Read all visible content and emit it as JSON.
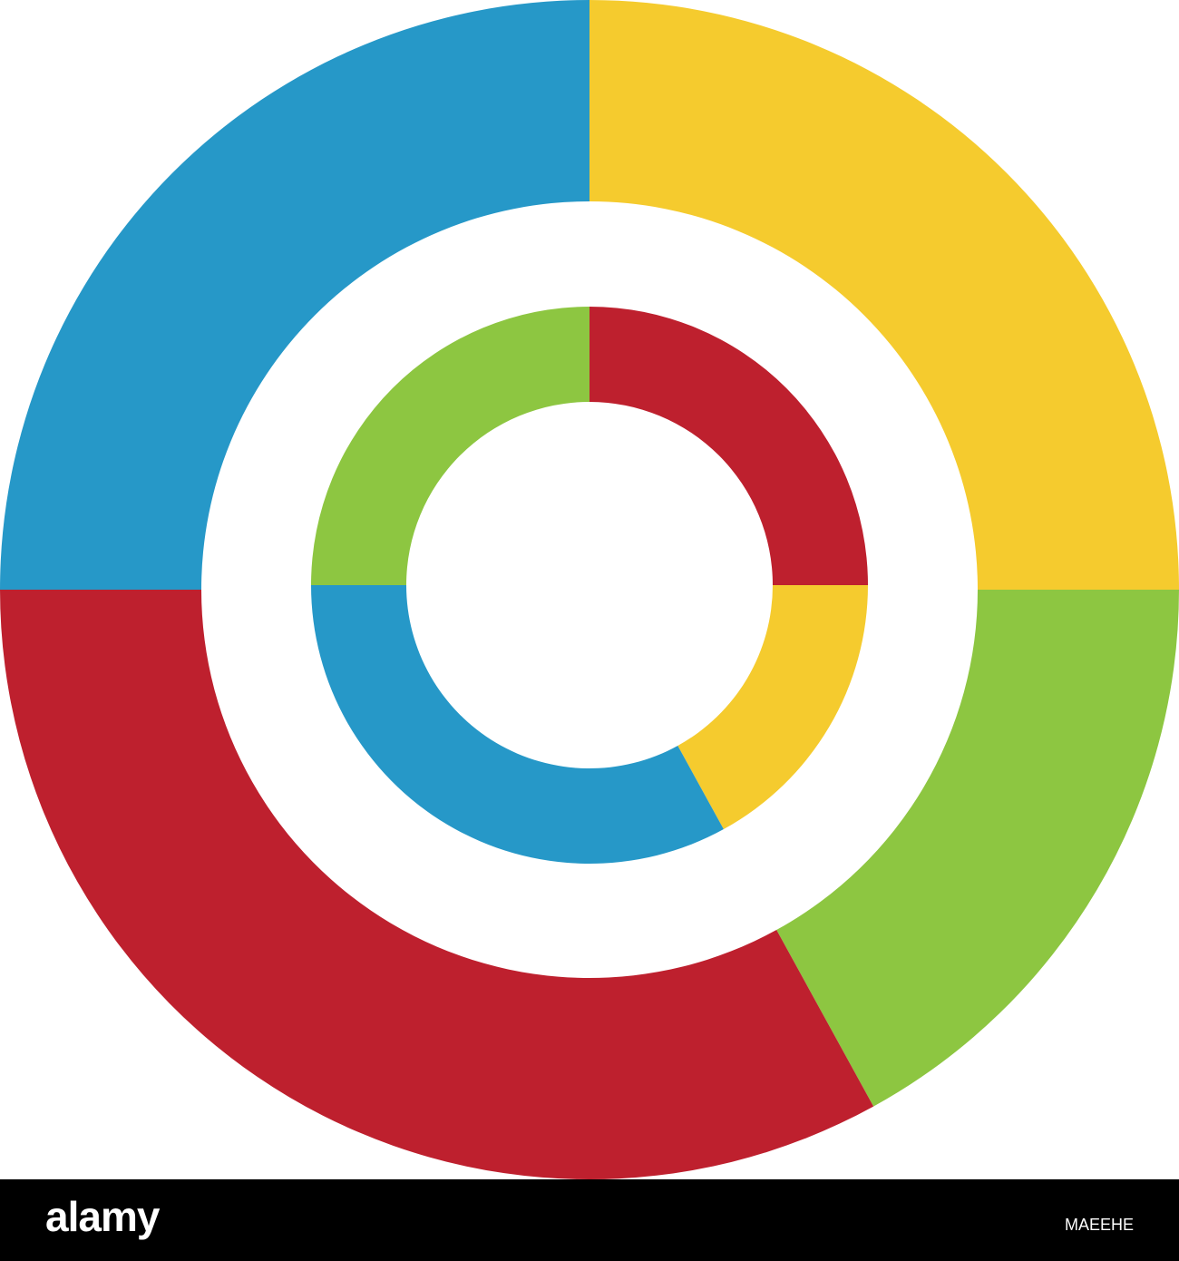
{
  "chart_data": {
    "type": "donut",
    "series": [
      {
        "values": [
          25,
          17,
          33,
          25
        ],
        "colors": [
          "#f5cb2e",
          "#8dc641",
          "#be202e",
          "#2698c8"
        ]
      },
      {
        "values": [
          25,
          17,
          33,
          25
        ],
        "colors": [
          "#be202e",
          "#f5cb2e",
          "#2698c8",
          "#8dc641"
        ]
      }
    ]
  },
  "footer": {
    "logo": "alamy",
    "image_id": "MAEEHE"
  }
}
